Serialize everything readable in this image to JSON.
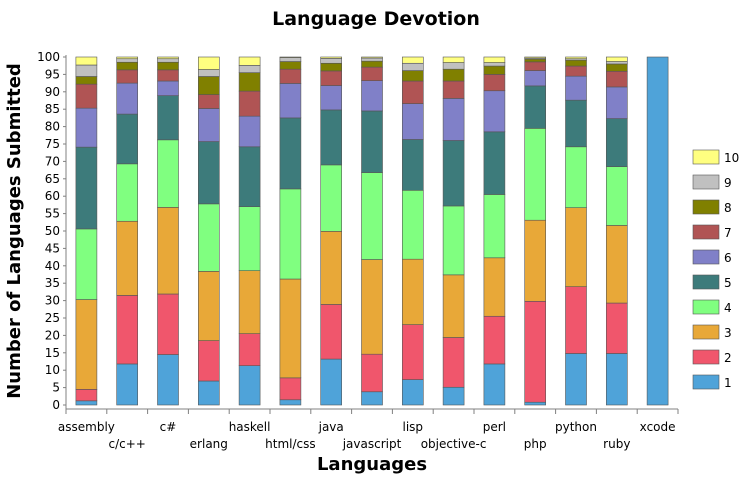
{
  "chart_data": {
    "type": "bar",
    "stacked": true,
    "title": "Language Devotion",
    "xlabel": "Languages",
    "ylabel": "Number of Languages Submitted",
    "ylim": [
      0,
      100
    ],
    "yticks": [
      0,
      5,
      10,
      15,
      20,
      25,
      30,
      35,
      40,
      45,
      50,
      55,
      60,
      65,
      70,
      75,
      80,
      85,
      90,
      95,
      100
    ],
    "legend_position": "right",
    "categories": [
      "assembly",
      "c/c++",
      "c#",
      "erlang",
      "haskell",
      "html/css",
      "java",
      "javascript",
      "lisp",
      "objective-c",
      "perl",
      "php",
      "python",
      "ruby",
      "xcode"
    ],
    "series": [
      {
        "name": "1",
        "color": "#4fa3d9",
        "values": [
          1.2,
          11.8,
          14.5,
          6.9,
          11.3,
          1.5,
          13.2,
          3.8,
          7.3,
          5.1,
          11.8,
          0.8,
          14.8,
          14.8,
          100
        ]
      },
      {
        "name": "2",
        "color": "#f0566c",
        "values": [
          3.3,
          19.7,
          17.4,
          11.6,
          9.2,
          6.3,
          15.7,
          10.8,
          15.8,
          14.3,
          13.7,
          29.0,
          19.2,
          14.5,
          0
        ]
      },
      {
        "name": "3",
        "color": "#e8a838",
        "values": [
          25.8,
          21.3,
          24.9,
          19.9,
          18.1,
          28.4,
          21.0,
          27.2,
          18.8,
          18.0,
          16.8,
          23.3,
          22.7,
          22.3,
          0
        ]
      },
      {
        "name": "4",
        "color": "#80ff80",
        "values": [
          20.3,
          16.5,
          19.4,
          19.4,
          18.4,
          25.9,
          19.1,
          25.0,
          19.8,
          19.8,
          18.2,
          26.4,
          17.5,
          16.9,
          0
        ]
      },
      {
        "name": "5",
        "color": "#3d7b7b",
        "values": [
          23.5,
          14.3,
          12.7,
          17.9,
          17.2,
          20.4,
          15.8,
          17.7,
          14.6,
          18.8,
          18.0,
          12.2,
          13.4,
          13.8,
          0
        ]
      },
      {
        "name": "6",
        "color": "#8080c8",
        "values": [
          11.2,
          8.9,
          4.2,
          9.5,
          8.8,
          9.9,
          7.0,
          8.7,
          10.3,
          12.1,
          11.8,
          4.4,
          6.9,
          9.1,
          0
        ]
      },
      {
        "name": "7",
        "color": "#b05454",
        "values": [
          6.9,
          3.8,
          3.2,
          4.0,
          7.2,
          4.1,
          4.2,
          3.9,
          6.5,
          5.0,
          4.7,
          2.5,
          2.9,
          4.5,
          0
        ]
      },
      {
        "name": "8",
        "color": "#808000",
        "values": [
          2.2,
          2.2,
          2.2,
          5.2,
          5.3,
          2.2,
          2.2,
          1.7,
          3.0,
          3.4,
          2.4,
          0.8,
          1.7,
          2.1,
          0
        ]
      },
      {
        "name": "9",
        "color": "#c0c0c0",
        "values": [
          3.3,
          1.0,
          1.0,
          2.0,
          2.1,
          1.1,
          1.4,
          0.9,
          2.1,
          1.9,
          1.0,
          0.3,
          0.4,
          0.7,
          0
        ]
      },
      {
        "name": "10",
        "color": "#ffff80",
        "values": [
          2.3,
          0.5,
          0.5,
          3.6,
          2.4,
          0.2,
          0.4,
          0.3,
          1.8,
          1.6,
          1.6,
          0.3,
          0.5,
          1.3,
          0
        ]
      }
    ]
  }
}
